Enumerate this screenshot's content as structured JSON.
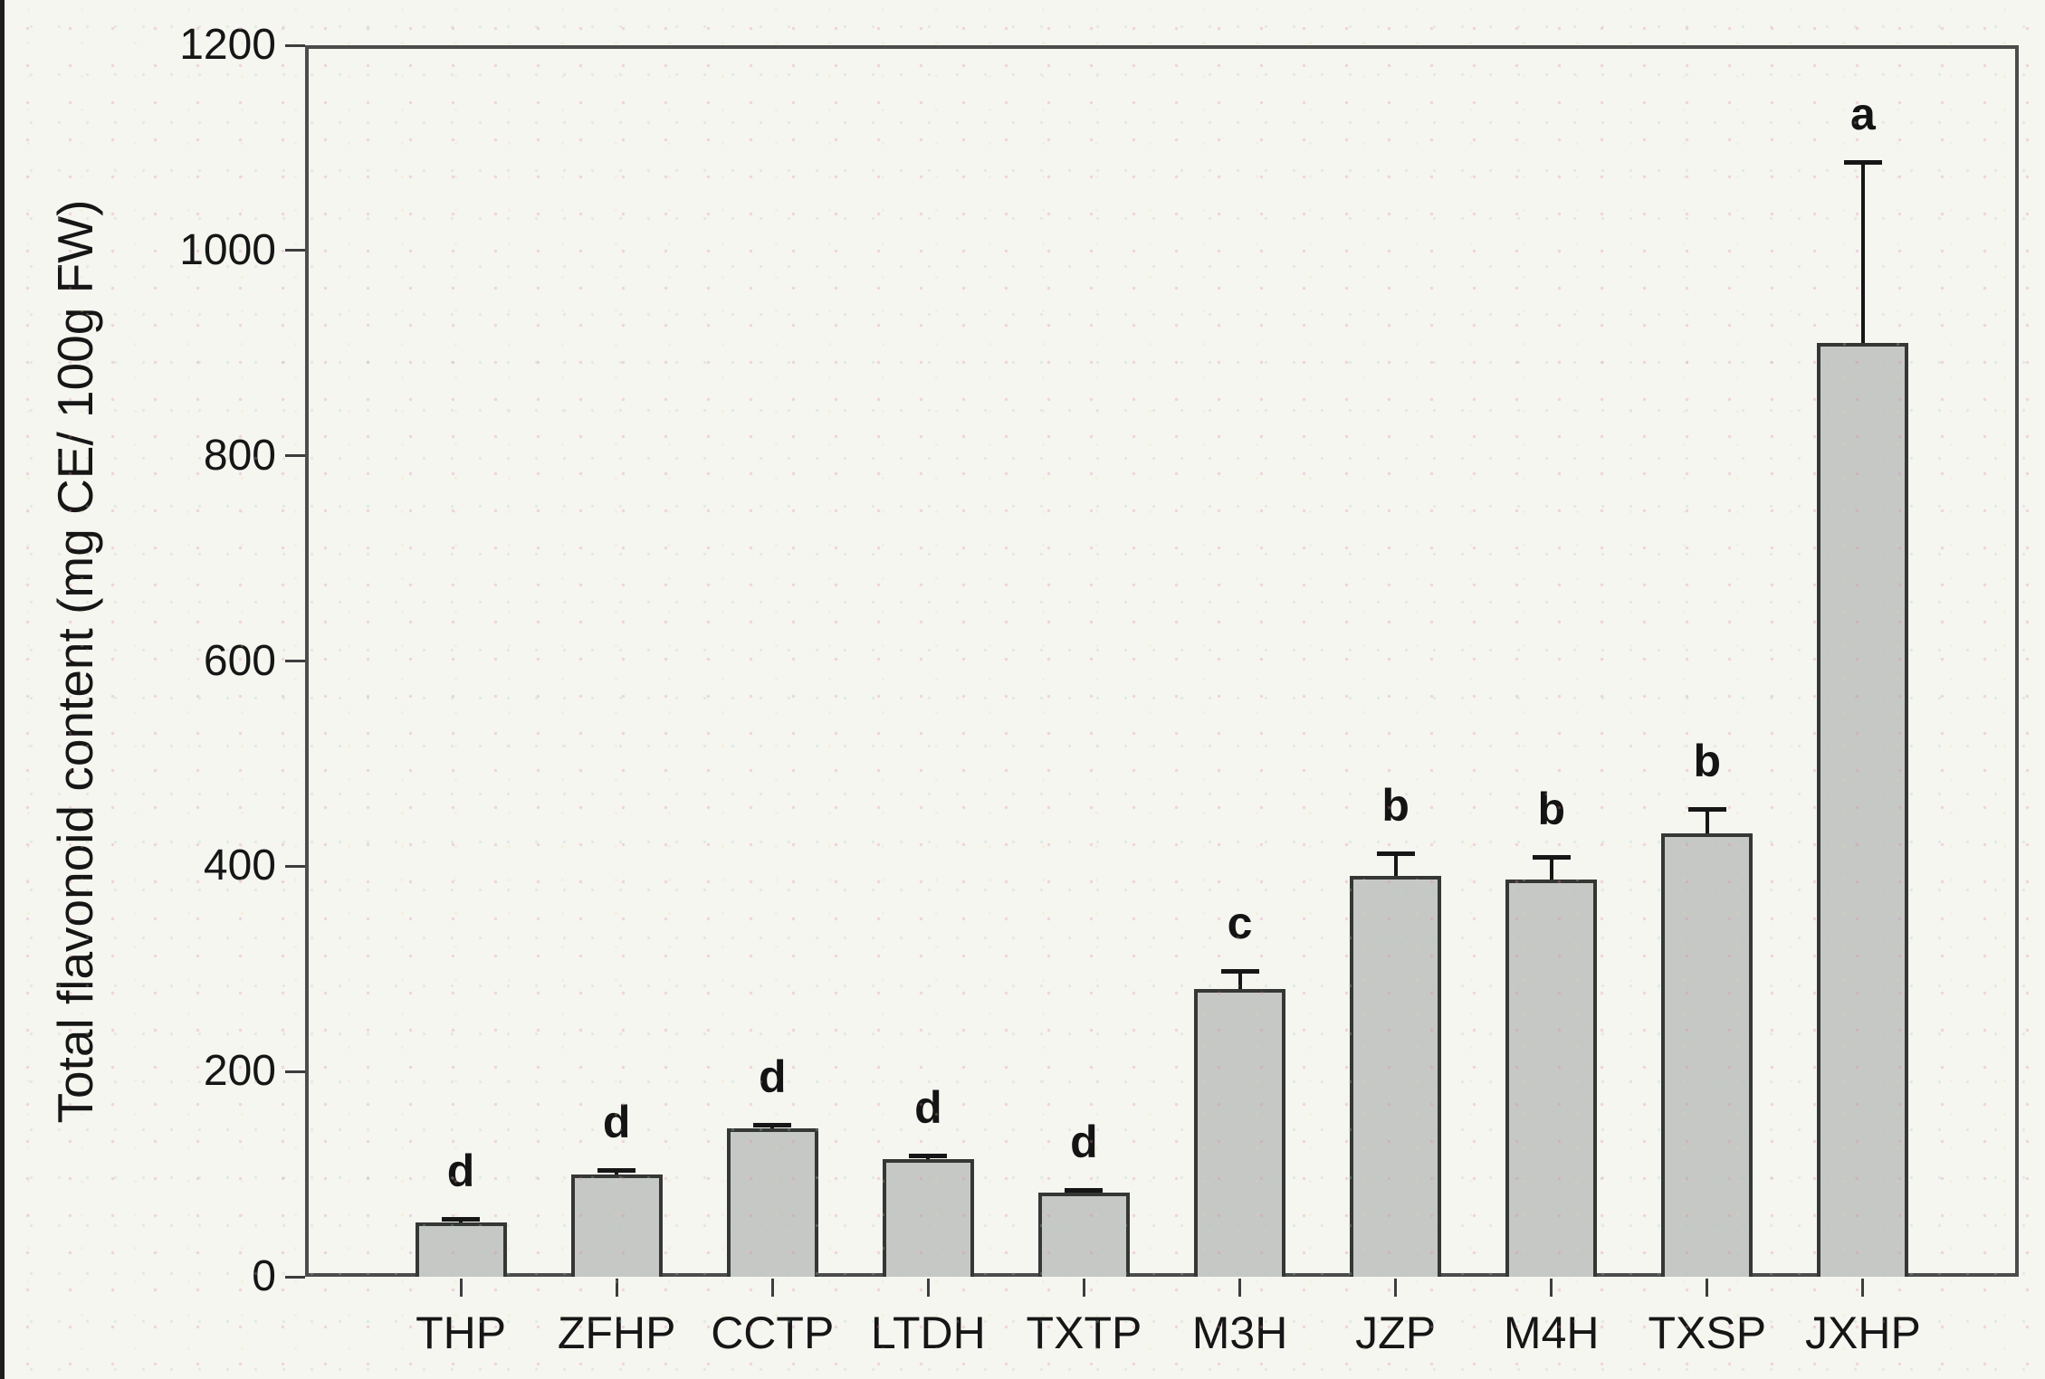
{
  "page": {
    "background": "#f6f6f1",
    "edge_strip_color": "#1e1e1e"
  },
  "chart_data": {
    "type": "bar",
    "title": "",
    "categories": [
      "THP",
      "ZFHP",
      "CCTP",
      "LTDH",
      "TXTP",
      "M3H",
      "JZP",
      "M4H",
      "TXSP",
      "JXHP"
    ],
    "values": [
      53,
      100,
      145,
      115,
      82,
      280,
      391,
      387,
      432,
      910
    ],
    "errors": [
      3,
      4,
      3,
      3,
      3,
      18,
      22,
      22,
      24,
      176
    ],
    "sig_letters": [
      "d",
      "d",
      "d",
      "d",
      "d",
      "c",
      "b",
      "b",
      "b",
      "a"
    ],
    "ylabel": "Total flavonoid content (mg CE/ 100g FW)",
    "xlabel": "",
    "ylim": [
      0,
      1200
    ],
    "ytick_step": 200,
    "ytick_labels": [
      "0",
      "200",
      "400",
      "600",
      "800",
      "1000",
      "1200"
    ],
    "grid": false,
    "legend_position": "none",
    "colors": {
      "bar_fill": "#c6c8c6",
      "bar_border": "#343734",
      "axis": "#4c4c4c",
      "error_bar": "#161616",
      "text": "#161616"
    }
  }
}
